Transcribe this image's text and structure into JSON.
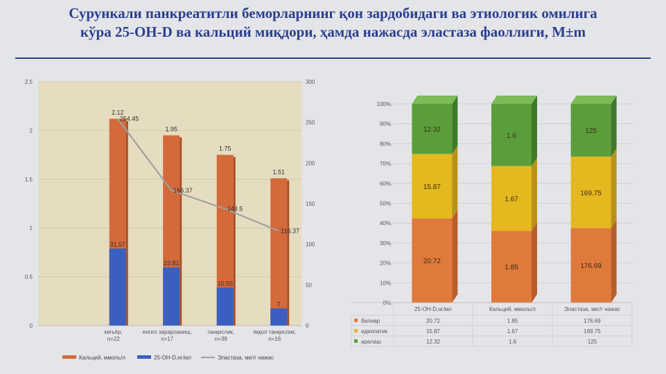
{
  "title_line1": "Сурункали панкреатитли беморларнинг қон зардобидаги ва этиологик омилига",
  "title_line2": "кўра 25-ОН-D ва кальций миқдори, ҳамда нажасда эластаза фаоллиги, M±m",
  "chart_data": [
    {
      "type": "bar",
      "categories": [
        "меъёр, n=22",
        "енгил зарарланиш, n=17",
        "танқислик, n=39",
        "яққол танқислик, n=16"
      ],
      "series": [
        {
          "name": "Кальций, ммоль/л",
          "values": [
            2.12,
            1.95,
            1.75,
            1.51
          ],
          "color": "#d4693a"
        },
        {
          "name": "25-ОН-D,нг/мл",
          "values": [
            31.57,
            23.81,
            15.55,
            7
          ],
          "color": "#3a5fc0"
        },
        {
          "name": "Эластаза, мкг/г нажас",
          "values": [
            254.45,
            166.37,
            143.5,
            116.37
          ],
          "color": "#a0a0a0",
          "axis": "right"
        }
      ],
      "ylim": [
        0,
        2.5
      ],
      "yticks": [
        "0",
        "0.5",
        "1",
        "1.5",
        "2",
        "2.5"
      ],
      "y2lim": [
        0,
        300
      ],
      "y2ticks": [
        "0",
        "50",
        "100",
        "150",
        "200",
        "250",
        "300"
      ],
      "grid": true,
      "legend": "bottom"
    },
    {
      "type": "bar",
      "stacked": "percent",
      "categories": [
        "25-ОН-D,нг/мл",
        "Кальций, ммоль/л",
        "Эластаза, мкг/г нажас"
      ],
      "series": [
        {
          "name": "билиар",
          "values": [
            20.72,
            1.85,
            176.69
          ],
          "color": "#e07a3c"
        },
        {
          "name": "идиопатик",
          "values": [
            15.87,
            1.67,
            169.75
          ],
          "color": "#e5b820"
        },
        {
          "name": "аралаш",
          "values": [
            12.32,
            1.6,
            125
          ],
          "color": "#5a9e3c"
        }
      ],
      "yticks": [
        "0%",
        "10%",
        "20%",
        "30%",
        "40%",
        "50%",
        "60%",
        "70%",
        "80%",
        "90%",
        "100%"
      ],
      "data_table": true
    }
  ]
}
